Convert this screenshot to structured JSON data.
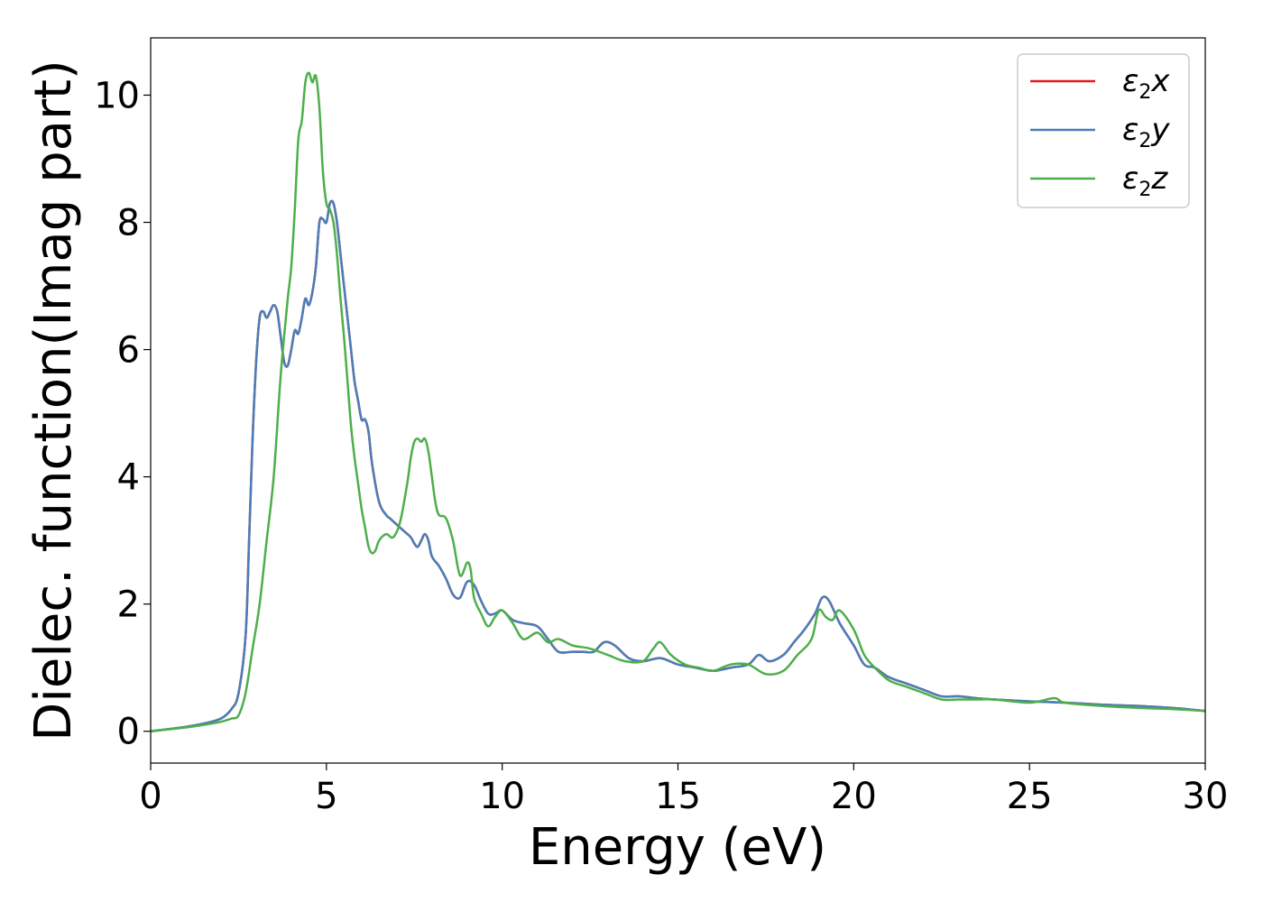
{
  "chart_data": {
    "type": "line",
    "xlabel": "Energy (eV)",
    "ylabel": "Dielec. function(Imag part)",
    "xlim": [
      0,
      30
    ],
    "ylim": [
      -0.5,
      10.9
    ],
    "xticks": [
      0,
      5,
      10,
      15,
      20,
      25,
      30
    ],
    "xtick_labels": [
      "0",
      "5",
      "10",
      "15",
      "20",
      "25",
      "30"
    ],
    "yticks": [
      0,
      2,
      4,
      6,
      8,
      10
    ],
    "ytick_labels": [
      "0",
      "2",
      "4",
      "6",
      "8",
      "10"
    ],
    "grid": false,
    "legend_position": "top-right",
    "series": [
      {
        "name": "ε2x",
        "color": "#e41a1c",
        "x": [
          0,
          1,
          1.5,
          2,
          2.3,
          2.5,
          2.7,
          2.8,
          2.9,
          3.0,
          3.1,
          3.2,
          3.3,
          3.4,
          3.5,
          3.6,
          3.7,
          3.8,
          3.9,
          4.0,
          4.1,
          4.2,
          4.3,
          4.4,
          4.5,
          4.6,
          4.7,
          4.8,
          4.9,
          5.0,
          5.1,
          5.2,
          5.3,
          5.4,
          5.5,
          5.6,
          5.7,
          5.8,
          5.9,
          6.0,
          6.1,
          6.2,
          6.3,
          6.5,
          6.7,
          6.8,
          7.0,
          7.2,
          7.4,
          7.5,
          7.6,
          7.7,
          7.8,
          7.9,
          8.0,
          8.2,
          8.4,
          8.6,
          8.8,
          9.0,
          9.2,
          9.4,
          9.6,
          9.8,
          10.0,
          10.3,
          10.6,
          11.0,
          11.3,
          11.6,
          12.0,
          12.3,
          12.6,
          12.9,
          13.2,
          13.6,
          14.0,
          14.5,
          15.0,
          15.5,
          16.0,
          16.5,
          17.0,
          17.3,
          17.6,
          18.0,
          18.3,
          18.6,
          18.9,
          19.1,
          19.3,
          19.6,
          20.0,
          20.3,
          20.6,
          21.0,
          21.5,
          22.0,
          22.5,
          23.0,
          23.5,
          24.0,
          25.0,
          26.0,
          27.0,
          28.0,
          29.0,
          30.0
        ],
        "values": [
          0.0,
          0.07,
          0.12,
          0.2,
          0.35,
          0.6,
          1.5,
          3.0,
          4.6,
          5.8,
          6.5,
          6.6,
          6.5,
          6.6,
          6.7,
          6.6,
          6.2,
          5.8,
          5.75,
          6.0,
          6.3,
          6.25,
          6.5,
          6.8,
          6.7,
          6.9,
          7.3,
          8.0,
          8.05,
          8.0,
          8.3,
          8.3,
          8.0,
          7.5,
          7.0,
          6.5,
          6.0,
          5.5,
          5.2,
          4.9,
          4.9,
          4.7,
          4.2,
          3.6,
          3.4,
          3.35,
          3.25,
          3.15,
          3.05,
          2.95,
          2.9,
          3.0,
          3.1,
          3.0,
          2.75,
          2.6,
          2.4,
          2.15,
          2.1,
          2.35,
          2.3,
          2.05,
          1.85,
          1.85,
          1.9,
          1.75,
          1.7,
          1.65,
          1.45,
          1.25,
          1.25,
          1.25,
          1.25,
          1.4,
          1.35,
          1.15,
          1.1,
          1.15,
          1.05,
          1.0,
          0.95,
          1.0,
          1.05,
          1.2,
          1.1,
          1.2,
          1.4,
          1.6,
          1.85,
          2.1,
          2.05,
          1.7,
          1.35,
          1.05,
          1.0,
          0.85,
          0.75,
          0.65,
          0.55,
          0.55,
          0.52,
          0.5,
          0.47,
          0.45,
          0.42,
          0.4,
          0.37,
          0.32
        ]
      },
      {
        "name": "ε2y",
        "color": "#4a7eb8",
        "x": [
          0,
          1,
          1.5,
          2,
          2.3,
          2.5,
          2.7,
          2.8,
          2.9,
          3.0,
          3.1,
          3.2,
          3.3,
          3.4,
          3.5,
          3.6,
          3.7,
          3.8,
          3.9,
          4.0,
          4.1,
          4.2,
          4.3,
          4.4,
          4.5,
          4.6,
          4.7,
          4.8,
          4.9,
          5.0,
          5.1,
          5.2,
          5.3,
          5.4,
          5.5,
          5.6,
          5.7,
          5.8,
          5.9,
          6.0,
          6.1,
          6.2,
          6.3,
          6.5,
          6.7,
          6.8,
          7.0,
          7.2,
          7.4,
          7.5,
          7.6,
          7.7,
          7.8,
          7.9,
          8.0,
          8.2,
          8.4,
          8.6,
          8.8,
          9.0,
          9.2,
          9.4,
          9.6,
          9.8,
          10.0,
          10.3,
          10.6,
          11.0,
          11.3,
          11.6,
          12.0,
          12.3,
          12.6,
          12.9,
          13.2,
          13.6,
          14.0,
          14.5,
          15.0,
          15.5,
          16.0,
          16.5,
          17.0,
          17.3,
          17.6,
          18.0,
          18.3,
          18.6,
          18.9,
          19.1,
          19.3,
          19.6,
          20.0,
          20.3,
          20.6,
          21.0,
          21.5,
          22.0,
          22.5,
          23.0,
          23.5,
          24.0,
          25.0,
          26.0,
          27.0,
          28.0,
          29.0,
          30.0
        ],
        "values": [
          0.0,
          0.07,
          0.12,
          0.2,
          0.35,
          0.6,
          1.5,
          3.0,
          4.6,
          5.8,
          6.5,
          6.6,
          6.5,
          6.6,
          6.7,
          6.6,
          6.2,
          5.8,
          5.75,
          6.0,
          6.3,
          6.25,
          6.5,
          6.8,
          6.7,
          6.9,
          7.3,
          8.0,
          8.05,
          8.0,
          8.3,
          8.3,
          8.0,
          7.5,
          7.0,
          6.5,
          6.0,
          5.5,
          5.2,
          4.9,
          4.9,
          4.7,
          4.2,
          3.6,
          3.4,
          3.35,
          3.25,
          3.15,
          3.05,
          2.95,
          2.9,
          3.0,
          3.1,
          3.0,
          2.75,
          2.6,
          2.4,
          2.15,
          2.1,
          2.35,
          2.3,
          2.05,
          1.85,
          1.85,
          1.9,
          1.75,
          1.7,
          1.65,
          1.45,
          1.25,
          1.25,
          1.25,
          1.25,
          1.4,
          1.35,
          1.15,
          1.1,
          1.15,
          1.05,
          1.0,
          0.95,
          1.0,
          1.05,
          1.2,
          1.1,
          1.2,
          1.4,
          1.6,
          1.85,
          2.1,
          2.05,
          1.7,
          1.35,
          1.05,
          1.0,
          0.85,
          0.75,
          0.65,
          0.55,
          0.55,
          0.52,
          0.5,
          0.47,
          0.45,
          0.42,
          0.4,
          0.37,
          0.32
        ]
      },
      {
        "name": "ε2z",
        "color": "#4daf4a",
        "x": [
          0,
          1,
          1.5,
          2,
          2.3,
          2.5,
          2.7,
          2.9,
          3.1,
          3.3,
          3.5,
          3.7,
          3.9,
          4.0,
          4.1,
          4.2,
          4.3,
          4.4,
          4.5,
          4.6,
          4.7,
          4.8,
          4.9,
          5.0,
          5.1,
          5.2,
          5.3,
          5.4,
          5.5,
          5.6,
          5.7,
          5.8,
          5.9,
          6.0,
          6.1,
          6.2,
          6.3,
          6.4,
          6.5,
          6.7,
          6.9,
          7.1,
          7.3,
          7.4,
          7.5,
          7.6,
          7.7,
          7.8,
          7.9,
          8.0,
          8.1,
          8.2,
          8.4,
          8.6,
          8.8,
          9.0,
          9.1,
          9.2,
          9.4,
          9.6,
          9.8,
          10.0,
          10.3,
          10.6,
          11.0,
          11.3,
          11.6,
          12.0,
          12.5,
          13.0,
          13.5,
          14.0,
          14.3,
          14.5,
          14.8,
          15.2,
          15.6,
          16.0,
          16.5,
          17.0,
          17.5,
          18.0,
          18.4,
          18.8,
          19.0,
          19.2,
          19.4,
          19.6,
          20.0,
          20.3,
          20.6,
          21.0,
          21.5,
          22.0,
          22.5,
          23.0,
          23.5,
          24.0,
          25.0,
          25.7,
          26.0,
          27.0,
          28.0,
          29.0,
          30.0
        ],
        "values": [
          0.0,
          0.06,
          0.1,
          0.15,
          0.2,
          0.25,
          0.6,
          1.3,
          2.0,
          3.0,
          4.0,
          5.6,
          6.8,
          7.3,
          8.2,
          9.3,
          9.6,
          10.2,
          10.35,
          10.2,
          10.3,
          9.8,
          8.8,
          8.3,
          8.2,
          8.0,
          7.5,
          6.8,
          6.2,
          5.5,
          4.8,
          4.3,
          3.9,
          3.5,
          3.2,
          2.9,
          2.8,
          2.85,
          3.0,
          3.1,
          3.05,
          3.3,
          3.9,
          4.3,
          4.55,
          4.6,
          4.55,
          4.6,
          4.4,
          4.0,
          3.6,
          3.4,
          3.35,
          3.0,
          2.45,
          2.65,
          2.55,
          2.1,
          1.85,
          1.65,
          1.8,
          1.9,
          1.7,
          1.45,
          1.55,
          1.4,
          1.45,
          1.35,
          1.3,
          1.2,
          1.1,
          1.1,
          1.3,
          1.4,
          1.2,
          1.05,
          1.0,
          0.95,
          1.05,
          1.05,
          0.9,
          0.95,
          1.2,
          1.45,
          1.9,
          1.8,
          1.75,
          1.9,
          1.6,
          1.2,
          1.0,
          0.8,
          0.7,
          0.6,
          0.5,
          0.5,
          0.5,
          0.5,
          0.45,
          0.52,
          0.45,
          0.4,
          0.37,
          0.35,
          0.32
        ]
      }
    ]
  },
  "legend": {
    "items": [
      {
        "symbol": "ε",
        "sub": "2",
        "axis": "x",
        "color": "#e41a1c"
      },
      {
        "symbol": "ε",
        "sub": "2",
        "axis": "y",
        "color": "#4a7eb8"
      },
      {
        "symbol": "ε",
        "sub": "2",
        "axis": "z",
        "color": "#4daf4a"
      }
    ]
  }
}
